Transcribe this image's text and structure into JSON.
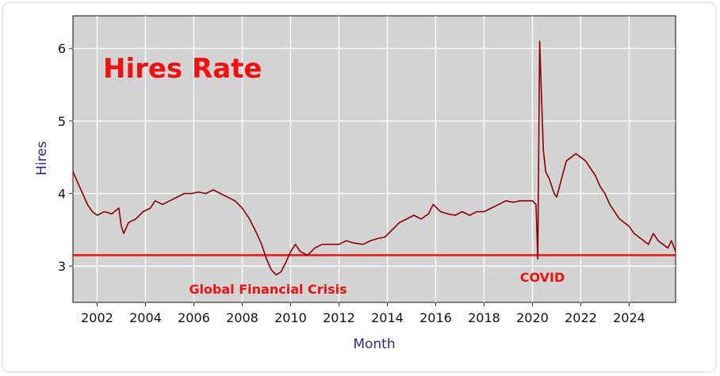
{
  "chart_data": {
    "type": "line",
    "title": "Hires Rate",
    "xlabel": "Month",
    "ylabel": "Hires",
    "xlim": [
      2001.0,
      2025.92
    ],
    "ylim": [
      2.5,
      6.45
    ],
    "grid": true,
    "x_ticks": [
      "2002",
      "2004",
      "2006",
      "2008",
      "2010",
      "2012",
      "2014",
      "2016",
      "2018",
      "2020",
      "2022",
      "2024"
    ],
    "y_ticks": [
      "3",
      "4",
      "5",
      "6"
    ],
    "reference_line": {
      "y": 3.15,
      "color": "#ee1111"
    },
    "annotations": [
      {
        "text": "Global Financial Crisis",
        "x": 2009.8
      },
      {
        "text": "COVID",
        "x": 2020.2
      }
    ],
    "series": [
      {
        "color": "#8b0000",
        "points": [
          [
            2001.0,
            4.3
          ],
          [
            2001.2,
            4.15
          ],
          [
            2001.4,
            4.0
          ],
          [
            2001.6,
            3.85
          ],
          [
            2001.8,
            3.75
          ],
          [
            2002.0,
            3.7
          ],
          [
            2002.3,
            3.75
          ],
          [
            2002.6,
            3.72
          ],
          [
            2002.9,
            3.8
          ],
          [
            2003.0,
            3.55
          ],
          [
            2003.1,
            3.45
          ],
          [
            2003.3,
            3.6
          ],
          [
            2003.6,
            3.65
          ],
          [
            2003.9,
            3.75
          ],
          [
            2004.2,
            3.8
          ],
          [
            2004.4,
            3.9
          ],
          [
            2004.7,
            3.85
          ],
          [
            2005.0,
            3.9
          ],
          [
            2005.3,
            3.95
          ],
          [
            2005.6,
            4.0
          ],
          [
            2005.9,
            4.0
          ],
          [
            2006.2,
            4.02
          ],
          [
            2006.5,
            4.0
          ],
          [
            2006.8,
            4.05
          ],
          [
            2007.1,
            4.0
          ],
          [
            2007.4,
            3.95
          ],
          [
            2007.7,
            3.9
          ],
          [
            2008.0,
            3.8
          ],
          [
            2008.3,
            3.65
          ],
          [
            2008.6,
            3.45
          ],
          [
            2008.8,
            3.3
          ],
          [
            2009.0,
            3.1
          ],
          [
            2009.2,
            2.95
          ],
          [
            2009.4,
            2.88
          ],
          [
            2009.6,
            2.92
          ],
          [
            2009.8,
            3.05
          ],
          [
            2010.0,
            3.2
          ],
          [
            2010.2,
            3.3
          ],
          [
            2010.4,
            3.2
          ],
          [
            2010.7,
            3.15
          ],
          [
            2011.0,
            3.25
          ],
          [
            2011.3,
            3.3
          ],
          [
            2011.6,
            3.3
          ],
          [
            2012.0,
            3.3
          ],
          [
            2012.3,
            3.35
          ],
          [
            2012.6,
            3.32
          ],
          [
            2013.0,
            3.3
          ],
          [
            2013.3,
            3.35
          ],
          [
            2013.6,
            3.38
          ],
          [
            2013.9,
            3.4
          ],
          [
            2014.2,
            3.5
          ],
          [
            2014.5,
            3.6
          ],
          [
            2014.8,
            3.65
          ],
          [
            2015.1,
            3.7
          ],
          [
            2015.4,
            3.65
          ],
          [
            2015.7,
            3.72
          ],
          [
            2015.9,
            3.85
          ],
          [
            2016.2,
            3.75
          ],
          [
            2016.5,
            3.72
          ],
          [
            2016.8,
            3.7
          ],
          [
            2017.1,
            3.75
          ],
          [
            2017.4,
            3.7
          ],
          [
            2017.7,
            3.75
          ],
          [
            2018.0,
            3.75
          ],
          [
            2018.3,
            3.8
          ],
          [
            2018.6,
            3.85
          ],
          [
            2018.9,
            3.9
          ],
          [
            2019.2,
            3.88
          ],
          [
            2019.5,
            3.9
          ],
          [
            2019.8,
            3.9
          ],
          [
            2020.0,
            3.9
          ],
          [
            2020.15,
            3.85
          ],
          [
            2020.22,
            3.1
          ],
          [
            2020.3,
            6.1
          ],
          [
            2020.37,
            5.4
          ],
          [
            2020.45,
            4.6
          ],
          [
            2020.55,
            4.3
          ],
          [
            2020.7,
            4.2
          ],
          [
            2020.9,
            4.0
          ],
          [
            2021.0,
            3.95
          ],
          [
            2021.2,
            4.2
          ],
          [
            2021.4,
            4.45
          ],
          [
            2021.6,
            4.5
          ],
          [
            2021.8,
            4.55
          ],
          [
            2022.0,
            4.5
          ],
          [
            2022.2,
            4.45
          ],
          [
            2022.4,
            4.35
          ],
          [
            2022.6,
            4.25
          ],
          [
            2022.8,
            4.1
          ],
          [
            2023.0,
            4.0
          ],
          [
            2023.2,
            3.85
          ],
          [
            2023.4,
            3.75
          ],
          [
            2023.6,
            3.65
          ],
          [
            2023.8,
            3.6
          ],
          [
            2024.0,
            3.55
          ],
          [
            2024.2,
            3.45
          ],
          [
            2024.4,
            3.4
          ],
          [
            2024.6,
            3.35
          ],
          [
            2024.8,
            3.3
          ],
          [
            2025.0,
            3.45
          ],
          [
            2025.2,
            3.35
          ],
          [
            2025.4,
            3.3
          ],
          [
            2025.6,
            3.25
          ],
          [
            2025.75,
            3.35
          ],
          [
            2025.92,
            3.2
          ]
        ]
      }
    ]
  }
}
